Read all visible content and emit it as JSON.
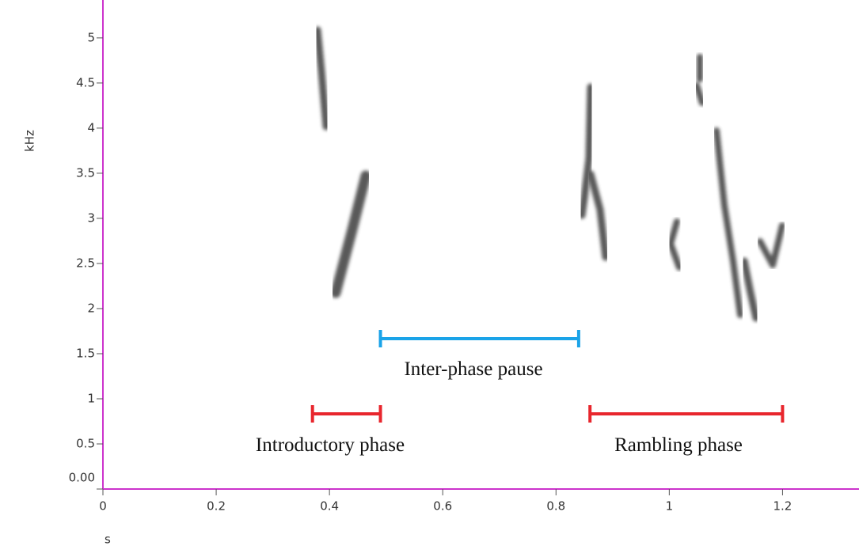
{
  "chart_data": {
    "type": "spectrogram",
    "x_label": "s",
    "y_label": "kHz",
    "xlim": [
      0,
      1.335
    ],
    "ylim": [
      0,
      5.42
    ],
    "xticks": [
      0,
      0.2,
      0.4,
      0.6,
      0.8,
      1,
      1.2
    ],
    "yticks": [
      {
        "value": 0,
        "label": "0.00"
      },
      0.5,
      1,
      1.5,
      2,
      2.5,
      3,
      3.5,
      4,
      4.5,
      5
    ],
    "axis_color": "#cc33cc",
    "origin_label_color": "#3344cc",
    "intervals": [
      {
        "label": "Inter-phase pause",
        "start": 0.49,
        "end": 0.84,
        "color": "#1aa3e8"
      },
      {
        "label": "Introductory phase",
        "start": 0.37,
        "end": 0.49,
        "color": "#e8262d"
      },
      {
        "label": "Rambling phase",
        "start": 0.86,
        "end": 1.2,
        "color": "#e8262d"
      }
    ]
  }
}
